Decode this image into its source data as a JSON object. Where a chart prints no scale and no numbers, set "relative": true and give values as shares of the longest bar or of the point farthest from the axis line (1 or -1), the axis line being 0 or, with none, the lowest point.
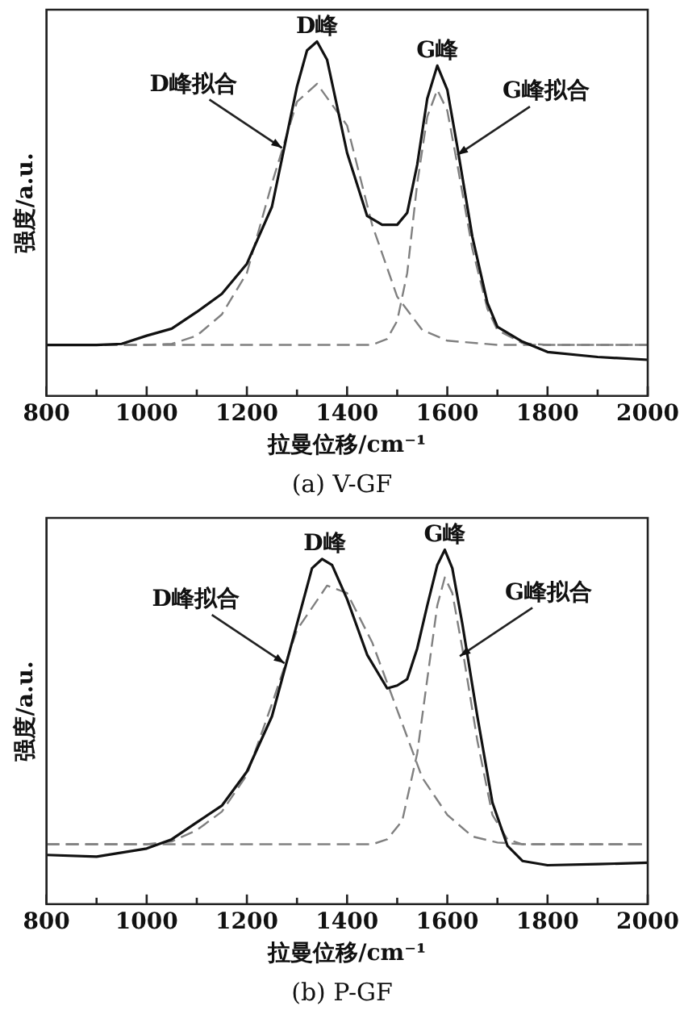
{
  "chart_data": [
    {
      "type": "line",
      "relative": true,
      "xlabel": "拉曼位移/cm⁻¹",
      "ylabel": "强度/a.u.",
      "xlim": [
        800,
        2000
      ],
      "xticks": [
        800,
        {
          "value": 900,
          "label": null
        },
        1000,
        {
          "value": 1100,
          "label": null
        },
        1200,
        {
          "value": 1300,
          "label": null
        },
        1400,
        {
          "value": 1500,
          "label": null
        },
        1600,
        {
          "value": 1700,
          "label": null
        },
        1800,
        {
          "value": 1900,
          "label": null
        },
        2000
      ],
      "grid": false,
      "legend": false,
      "marker": "none",
      "series": [
        {
          "color": "#111111",
          "line_style": "solid",
          "x": [
            800,
            900,
            950,
            1000,
            1050,
            1100,
            1150,
            1200,
            1250,
            1300,
            1320,
            1340,
            1360,
            1400,
            1440,
            1470,
            1500,
            1520,
            1540,
            1560,
            1580,
            1600,
            1620,
            1650,
            1680,
            1700,
            1750,
            1800,
            1900,
            2000
          ],
          "values": [
            0.144,
            0.144,
            0.147,
            0.17,
            0.19,
            0.237,
            0.288,
            0.373,
            0.534,
            0.873,
            0.975,
            1.0,
            0.949,
            0.686,
            0.508,
            0.483,
            0.483,
            0.517,
            0.653,
            0.839,
            0.932,
            0.864,
            0.703,
            0.449,
            0.263,
            0.195,
            0.153,
            0.124,
            0.11,
            0.102
          ]
        },
        {
          "color": "#808080",
          "line_style": "dashed",
          "x": [
            800,
            1000,
            1050,
            1100,
            1150,
            1200,
            1250,
            1300,
            1340,
            1400,
            1450,
            1500,
            1550,
            1600,
            1700,
            2000
          ],
          "values": [
            0.144,
            0.144,
            0.147,
            0.17,
            0.23,
            0.347,
            0.6,
            0.83,
            0.881,
            0.763,
            0.483,
            0.28,
            0.186,
            0.156,
            0.144,
            0.144
          ]
        },
        {
          "color": "#808080",
          "line_style": "dashed",
          "x": [
            800,
            1450,
            1480,
            1500,
            1520,
            1540,
            1560,
            1580,
            1600,
            1620,
            1650,
            1680,
            1700,
            1750,
            1800,
            2000
          ],
          "values": [
            0.144,
            0.144,
            0.161,
            0.212,
            0.347,
            0.6,
            0.788,
            0.864,
            0.805,
            0.653,
            0.415,
            0.246,
            0.186,
            0.149,
            0.144,
            0.144
          ]
        }
      ],
      "annotations": [
        {
          "text": "D峰",
          "x": 1340,
          "y": 1.0
        },
        {
          "text": "G峰",
          "x": 1580,
          "y": 0.932
        },
        {
          "text": "D峰拟合",
          "x": 1270,
          "y": 0.7
        },
        {
          "text": "G峰拟合",
          "x": 1620,
          "y": 0.68
        },
        "(a) V-GF"
      ]
    },
    {
      "type": "line",
      "relative": true,
      "xlabel": "拉曼位移/cm⁻¹",
      "ylabel": "强度/a.u.",
      "xlim": [
        800,
        2000
      ],
      "xticks": [
        800,
        {
          "value": 900,
          "label": null
        },
        1000,
        {
          "value": 1100,
          "label": null
        },
        1200,
        {
          "value": 1300,
          "label": null
        },
        1400,
        {
          "value": 1500,
          "label": null
        },
        1600,
        {
          "value": 1700,
          "label": null
        },
        1800,
        {
          "value": 1900,
          "label": null
        },
        2000
      ],
      "grid": false,
      "legend": false,
      "marker": "none",
      "series": [
        {
          "color": "#111111",
          "line_style": "solid",
          "x": [
            800,
            900,
            1000,
            1050,
            1100,
            1150,
            1200,
            1250,
            1300,
            1330,
            1350,
            1370,
            1400,
            1440,
            1480,
            1500,
            1520,
            1540,
            1560,
            1580,
            1595,
            1610,
            1630,
            1660,
            1690,
            1720,
            1750,
            1800,
            1900,
            2000
          ],
          "values": [
            0.139,
            0.134,
            0.157,
            0.183,
            0.231,
            0.278,
            0.374,
            0.53,
            0.791,
            0.948,
            0.974,
            0.957,
            0.861,
            0.704,
            0.609,
            0.617,
            0.635,
            0.722,
            0.843,
            0.957,
            1.0,
            0.948,
            0.791,
            0.53,
            0.287,
            0.165,
            0.122,
            0.11,
            0.113,
            0.117
          ]
        },
        {
          "color": "#808080",
          "line_style": "dashed",
          "x": [
            800,
            1000,
            1050,
            1100,
            1150,
            1200,
            1250,
            1300,
            1360,
            1400,
            1450,
            1500,
            1550,
            1600,
            1650,
            1700,
            1750,
            2000
          ],
          "values": [
            0.169,
            0.169,
            0.177,
            0.209,
            0.261,
            0.365,
            0.565,
            0.774,
            0.899,
            0.878,
            0.739,
            0.548,
            0.357,
            0.252,
            0.191,
            0.174,
            0.169,
            0.169
          ]
        },
        {
          "color": "#808080",
          "line_style": "dashed",
          "x": [
            800,
            1450,
            1480,
            1510,
            1540,
            1560,
            1580,
            1595,
            1610,
            1630,
            1660,
            1690,
            1720,
            1750,
            2000
          ],
          "values": [
            0.169,
            0.169,
            0.183,
            0.235,
            0.426,
            0.635,
            0.843,
            0.922,
            0.878,
            0.722,
            0.461,
            0.252,
            0.183,
            0.169,
            0.169
          ]
        }
      ],
      "annotations": [
        {
          "text": "D峰",
          "x": 1355,
          "y": 0.974
        },
        {
          "text": "G峰",
          "x": 1595,
          "y": 1.0
        },
        {
          "text": "D峰拟合",
          "x": 1275,
          "y": 0.68
        },
        {
          "text": "G峰拟合",
          "x": 1625,
          "y": 0.7
        },
        "(b) P-GF"
      ]
    }
  ]
}
